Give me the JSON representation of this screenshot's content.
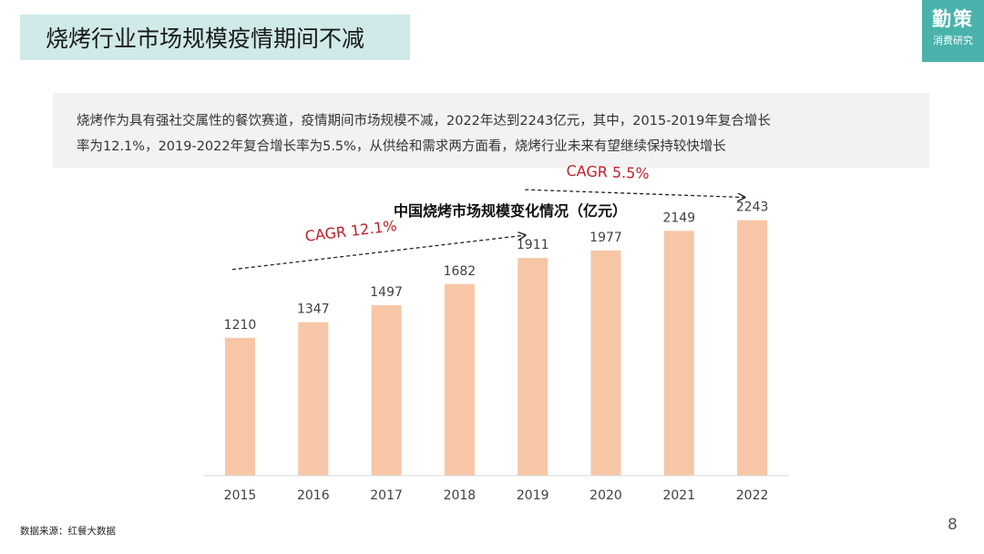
{
  "header": {
    "title": "烧烤行业市场规模疫情期间不减"
  },
  "brand": {
    "name": "勤策",
    "sub": "消费研究"
  },
  "summary": {
    "line1": "烧烤作为具有强社交属性的餐饮赛道，疫情期间市场规模不减，2022年达到2243亿元，其中，2015-2019年复合增长",
    "line2": "率为12.1%，2019-2022年复合增长率为5.5%，从供给和需求两方面看，烧烤行业未来有望继续保持较快增长"
  },
  "chart_data": {
    "type": "bar",
    "title": "中国烧烤市场规模变化情况（亿元）",
    "categories": [
      "2015",
      "2016",
      "2017",
      "2018",
      "2019",
      "2020",
      "2021",
      "2022"
    ],
    "values": [
      1210,
      1347,
      1497,
      1682,
      1911,
      1977,
      2149,
      2243
    ],
    "ylim": [
      0,
      2600
    ],
    "bar_color": "#f7c6a6",
    "grid": false,
    "annotations": [
      {
        "text": "CAGR  12.1%",
        "from": "2015",
        "to": "2019",
        "color": "#c0202a"
      },
      {
        "text": "CAGR  5.5%",
        "from": "2019",
        "to": "2022",
        "color": "#c0202a"
      }
    ]
  },
  "footer": {
    "source": "数据来源：红餐大数据",
    "page": "8"
  }
}
